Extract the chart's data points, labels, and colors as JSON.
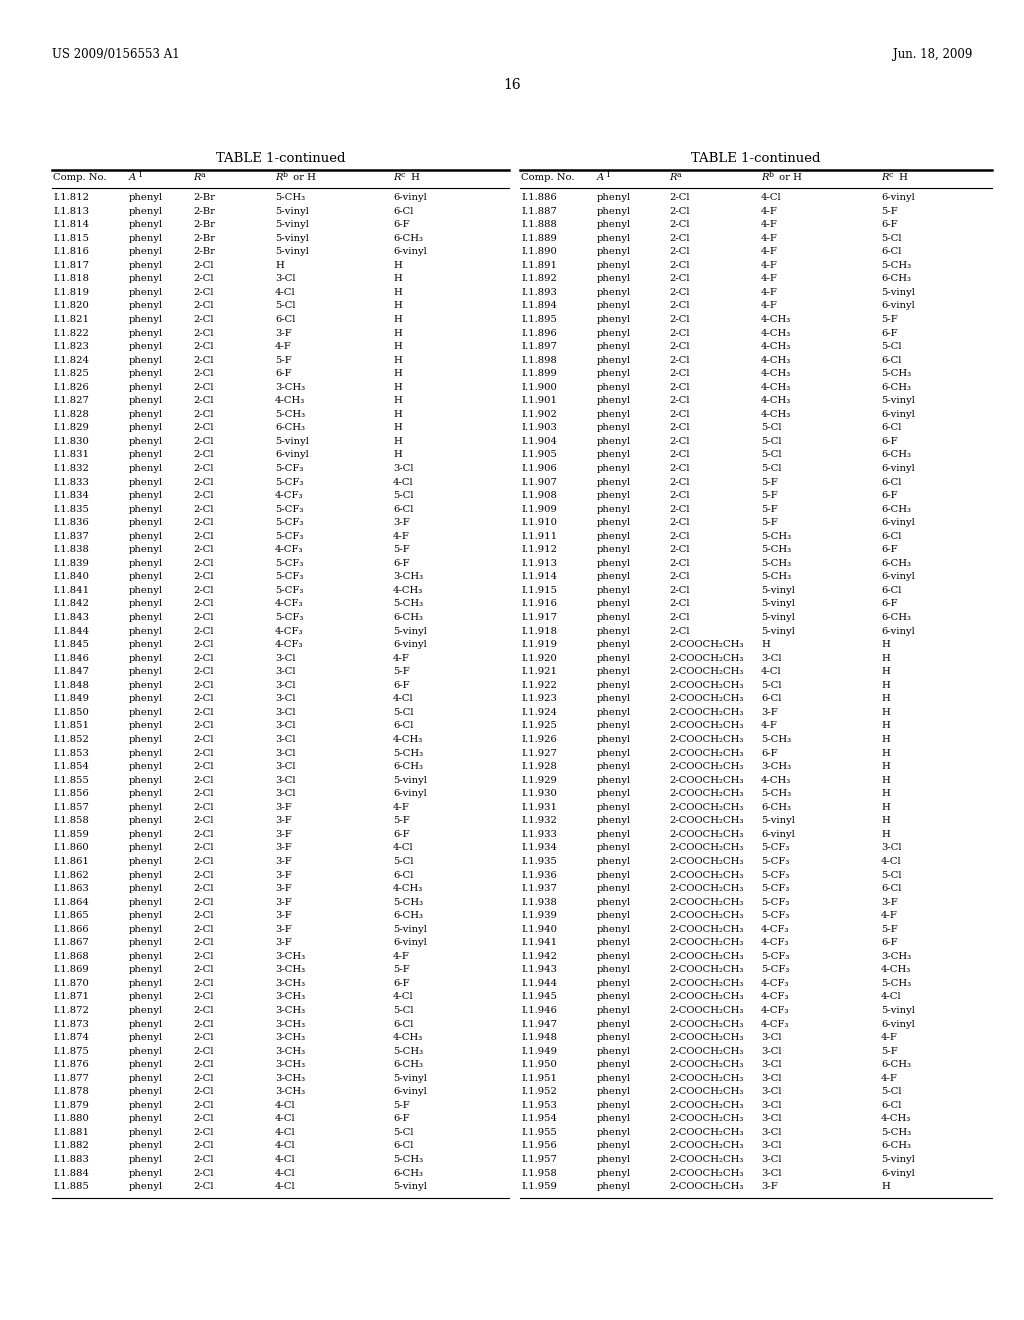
{
  "header_left": "US 2009/0156553 A1",
  "header_right": "Jun. 18, 2009",
  "page_number": "16",
  "table_title": "TABLE 1-continued",
  "background_color": "#ffffff",
  "text_color": "#000000",
  "font_size": 7.2,
  "title_font_size": 9.5,
  "left_table": [
    [
      "I.1.812",
      "phenyl",
      "2-Br",
      "5-CH₃",
      "6-vinyl"
    ],
    [
      "I.1.813",
      "phenyl",
      "2-Br",
      "5-vinyl",
      "6-Cl"
    ],
    [
      "I.1.814",
      "phenyl",
      "2-Br",
      "5-vinyl",
      "6-F"
    ],
    [
      "I.1.815",
      "phenyl",
      "2-Br",
      "5-vinyl",
      "6-CH₃"
    ],
    [
      "I.1.816",
      "phenyl",
      "2-Br",
      "5-vinyl",
      "6-vinyl"
    ],
    [
      "I.1.817",
      "phenyl",
      "2-Cl",
      "H",
      "H"
    ],
    [
      "I.1.818",
      "phenyl",
      "2-Cl",
      "3-Cl",
      "H"
    ],
    [
      "I.1.819",
      "phenyl",
      "2-Cl",
      "4-Cl",
      "H"
    ],
    [
      "I.1.820",
      "phenyl",
      "2-Cl",
      "5-Cl",
      "H"
    ],
    [
      "I.1.821",
      "phenyl",
      "2-Cl",
      "6-Cl",
      "H"
    ],
    [
      "I.1.822",
      "phenyl",
      "2-Cl",
      "3-F",
      "H"
    ],
    [
      "I.1.823",
      "phenyl",
      "2-Cl",
      "4-F",
      "H"
    ],
    [
      "I.1.824",
      "phenyl",
      "2-Cl",
      "5-F",
      "H"
    ],
    [
      "I.1.825",
      "phenyl",
      "2-Cl",
      "6-F",
      "H"
    ],
    [
      "I.1.826",
      "phenyl",
      "2-Cl",
      "3-CH₃",
      "H"
    ],
    [
      "I.1.827",
      "phenyl",
      "2-Cl",
      "4-CH₃",
      "H"
    ],
    [
      "I.1.828",
      "phenyl",
      "2-Cl",
      "5-CH₃",
      "H"
    ],
    [
      "I.1.829",
      "phenyl",
      "2-Cl",
      "6-CH₃",
      "H"
    ],
    [
      "I.1.830",
      "phenyl",
      "2-Cl",
      "5-vinyl",
      "H"
    ],
    [
      "I.1.831",
      "phenyl",
      "2-Cl",
      "6-vinyl",
      "H"
    ],
    [
      "I.1.832",
      "phenyl",
      "2-Cl",
      "5-CF₃",
      "3-Cl"
    ],
    [
      "I.1.833",
      "phenyl",
      "2-Cl",
      "5-CF₃",
      "4-Cl"
    ],
    [
      "I.1.834",
      "phenyl",
      "2-Cl",
      "4-CF₃",
      "5-Cl"
    ],
    [
      "I.1.835",
      "phenyl",
      "2-Cl",
      "5-CF₃",
      "6-Cl"
    ],
    [
      "I.1.836",
      "phenyl",
      "2-Cl",
      "5-CF₃",
      "3-F"
    ],
    [
      "I.1.837",
      "phenyl",
      "2-Cl",
      "5-CF₃",
      "4-F"
    ],
    [
      "I.1.838",
      "phenyl",
      "2-Cl",
      "4-CF₃",
      "5-F"
    ],
    [
      "I.1.839",
      "phenyl",
      "2-Cl",
      "5-CF₃",
      "6-F"
    ],
    [
      "I.1.840",
      "phenyl",
      "2-Cl",
      "5-CF₃",
      "3-CH₃"
    ],
    [
      "I.1.841",
      "phenyl",
      "2-Cl",
      "5-CF₃",
      "4-CH₃"
    ],
    [
      "I.1.842",
      "phenyl",
      "2-Cl",
      "4-CF₃",
      "5-CH₃"
    ],
    [
      "I.1.843",
      "phenyl",
      "2-Cl",
      "5-CF₃",
      "6-CH₃"
    ],
    [
      "I.1.844",
      "phenyl",
      "2-Cl",
      "4-CF₃",
      "5-vinyl"
    ],
    [
      "I.1.845",
      "phenyl",
      "2-Cl",
      "4-CF₃",
      "6-vinyl"
    ],
    [
      "I.1.846",
      "phenyl",
      "2-Cl",
      "3-Cl",
      "4-F"
    ],
    [
      "I.1.847",
      "phenyl",
      "2-Cl",
      "3-Cl",
      "5-F"
    ],
    [
      "I.1.848",
      "phenyl",
      "2-Cl",
      "3-Cl",
      "6-F"
    ],
    [
      "I.1.849",
      "phenyl",
      "2-Cl",
      "3-Cl",
      "4-Cl"
    ],
    [
      "I.1.850",
      "phenyl",
      "2-Cl",
      "3-Cl",
      "5-Cl"
    ],
    [
      "I.1.851",
      "phenyl",
      "2-Cl",
      "3-Cl",
      "6-Cl"
    ],
    [
      "I.1.852",
      "phenyl",
      "2-Cl",
      "3-Cl",
      "4-CH₃"
    ],
    [
      "I.1.853",
      "phenyl",
      "2-Cl",
      "3-Cl",
      "5-CH₃"
    ],
    [
      "I.1.854",
      "phenyl",
      "2-Cl",
      "3-Cl",
      "6-CH₃"
    ],
    [
      "I.1.855",
      "phenyl",
      "2-Cl",
      "3-Cl",
      "5-vinyl"
    ],
    [
      "I.1.856",
      "phenyl",
      "2-Cl",
      "3-Cl",
      "6-vinyl"
    ],
    [
      "I.1.857",
      "phenyl",
      "2-Cl",
      "3-F",
      "4-F"
    ],
    [
      "I.1.858",
      "phenyl",
      "2-Cl",
      "3-F",
      "5-F"
    ],
    [
      "I.1.859",
      "phenyl",
      "2-Cl",
      "3-F",
      "6-F"
    ],
    [
      "I.1.860",
      "phenyl",
      "2-Cl",
      "3-F",
      "4-Cl"
    ],
    [
      "I.1.861",
      "phenyl",
      "2-Cl",
      "3-F",
      "5-Cl"
    ],
    [
      "I.1.862",
      "phenyl",
      "2-Cl",
      "3-F",
      "6-Cl"
    ],
    [
      "I.1.863",
      "phenyl",
      "2-Cl",
      "3-F",
      "4-CH₃"
    ],
    [
      "I.1.864",
      "phenyl",
      "2-Cl",
      "3-F",
      "5-CH₃"
    ],
    [
      "I.1.865",
      "phenyl",
      "2-Cl",
      "3-F",
      "6-CH₃"
    ],
    [
      "I.1.866",
      "phenyl",
      "2-Cl",
      "3-F",
      "5-vinyl"
    ],
    [
      "I.1.867",
      "phenyl",
      "2-Cl",
      "3-F",
      "6-vinyl"
    ],
    [
      "I.1.868",
      "phenyl",
      "2-Cl",
      "3-CH₃",
      "4-F"
    ],
    [
      "I.1.869",
      "phenyl",
      "2-Cl",
      "3-CH₃",
      "5-F"
    ],
    [
      "I.1.870",
      "phenyl",
      "2-Cl",
      "3-CH₃",
      "6-F"
    ],
    [
      "I.1.871",
      "phenyl",
      "2-Cl",
      "3-CH₃",
      "4-Cl"
    ],
    [
      "I.1.872",
      "phenyl",
      "2-Cl",
      "3-CH₃",
      "5-Cl"
    ],
    [
      "I.1.873",
      "phenyl",
      "2-Cl",
      "3-CH₃",
      "6-Cl"
    ],
    [
      "I.1.874",
      "phenyl",
      "2-Cl",
      "3-CH₃",
      "4-CH₃"
    ],
    [
      "I.1.875",
      "phenyl",
      "2-Cl",
      "3-CH₃",
      "5-CH₃"
    ],
    [
      "I.1.876",
      "phenyl",
      "2-Cl",
      "3-CH₃",
      "6-CH₃"
    ],
    [
      "I.1.877",
      "phenyl",
      "2-Cl",
      "3-CH₃",
      "5-vinyl"
    ],
    [
      "I.1.878",
      "phenyl",
      "2-Cl",
      "3-CH₃",
      "6-vinyl"
    ],
    [
      "I.1.879",
      "phenyl",
      "2-Cl",
      "4-Cl",
      "5-F"
    ],
    [
      "I.1.880",
      "phenyl",
      "2-Cl",
      "4-Cl",
      "6-F"
    ],
    [
      "I.1.881",
      "phenyl",
      "2-Cl",
      "4-Cl",
      "5-Cl"
    ],
    [
      "I.1.882",
      "phenyl",
      "2-Cl",
      "4-Cl",
      "6-Cl"
    ],
    [
      "I.1.883",
      "phenyl",
      "2-Cl",
      "4-Cl",
      "5-CH₃"
    ],
    [
      "I.1.884",
      "phenyl",
      "2-Cl",
      "4-Cl",
      "6-CH₃"
    ],
    [
      "I.1.885",
      "phenyl",
      "2-Cl",
      "4-Cl",
      "5-vinyl"
    ]
  ],
  "right_table": [
    [
      "I.1.886",
      "phenyl",
      "2-Cl",
      "4-Cl",
      "6-vinyl"
    ],
    [
      "I.1.887",
      "phenyl",
      "2-Cl",
      "4-F",
      "5-F"
    ],
    [
      "I.1.888",
      "phenyl",
      "2-Cl",
      "4-F",
      "6-F"
    ],
    [
      "I.1.889",
      "phenyl",
      "2-Cl",
      "4-F",
      "5-Cl"
    ],
    [
      "I.1.890",
      "phenyl",
      "2-Cl",
      "4-F",
      "6-Cl"
    ],
    [
      "I.1.891",
      "phenyl",
      "2-Cl",
      "4-F",
      "5-CH₃"
    ],
    [
      "I.1.892",
      "phenyl",
      "2-Cl",
      "4-F",
      "6-CH₃"
    ],
    [
      "I.1.893",
      "phenyl",
      "2-Cl",
      "4-F",
      "5-vinyl"
    ],
    [
      "I.1.894",
      "phenyl",
      "2-Cl",
      "4-F",
      "6-vinyl"
    ],
    [
      "I.1.895",
      "phenyl",
      "2-Cl",
      "4-CH₃",
      "5-F"
    ],
    [
      "I.1.896",
      "phenyl",
      "2-Cl",
      "4-CH₃",
      "6-F"
    ],
    [
      "I.1.897",
      "phenyl",
      "2-Cl",
      "4-CH₃",
      "5-Cl"
    ],
    [
      "I.1.898",
      "phenyl",
      "2-Cl",
      "4-CH₃",
      "6-Cl"
    ],
    [
      "I.1.899",
      "phenyl",
      "2-Cl",
      "4-CH₃",
      "5-CH₃"
    ],
    [
      "I.1.900",
      "phenyl",
      "2-Cl",
      "4-CH₃",
      "6-CH₃"
    ],
    [
      "I.1.901",
      "phenyl",
      "2-Cl",
      "4-CH₃",
      "5-vinyl"
    ],
    [
      "I.1.902",
      "phenyl",
      "2-Cl",
      "4-CH₃",
      "6-vinyl"
    ],
    [
      "I.1.903",
      "phenyl",
      "2-Cl",
      "5-Cl",
      "6-Cl"
    ],
    [
      "I.1.904",
      "phenyl",
      "2-Cl",
      "5-Cl",
      "6-F"
    ],
    [
      "I.1.905",
      "phenyl",
      "2-Cl",
      "5-Cl",
      "6-CH₃"
    ],
    [
      "I.1.906",
      "phenyl",
      "2-Cl",
      "5-Cl",
      "6-vinyl"
    ],
    [
      "I.1.907",
      "phenyl",
      "2-Cl",
      "5-F",
      "6-Cl"
    ],
    [
      "I.1.908",
      "phenyl",
      "2-Cl",
      "5-F",
      "6-F"
    ],
    [
      "I.1.909",
      "phenyl",
      "2-Cl",
      "5-F",
      "6-CH₃"
    ],
    [
      "I.1.910",
      "phenyl",
      "2-Cl",
      "5-F",
      "6-vinyl"
    ],
    [
      "I.1.911",
      "phenyl",
      "2-Cl",
      "5-CH₃",
      "6-Cl"
    ],
    [
      "I.1.912",
      "phenyl",
      "2-Cl",
      "5-CH₃",
      "6-F"
    ],
    [
      "I.1.913",
      "phenyl",
      "2-Cl",
      "5-CH₃",
      "6-CH₃"
    ],
    [
      "I.1.914",
      "phenyl",
      "2-Cl",
      "5-CH₃",
      "6-vinyl"
    ],
    [
      "I.1.915",
      "phenyl",
      "2-Cl",
      "5-vinyl",
      "6-Cl"
    ],
    [
      "I.1.916",
      "phenyl",
      "2-Cl",
      "5-vinyl",
      "6-F"
    ],
    [
      "I.1.917",
      "phenyl",
      "2-Cl",
      "5-vinyl",
      "6-CH₃"
    ],
    [
      "I.1.918",
      "phenyl",
      "2-Cl",
      "5-vinyl",
      "6-vinyl"
    ],
    [
      "I.1.919",
      "phenyl",
      "2-COOCH₂CH₃",
      "H",
      "H"
    ],
    [
      "I.1.920",
      "phenyl",
      "2-COOCH₂CH₃",
      "3-Cl",
      "H"
    ],
    [
      "I.1.921",
      "phenyl",
      "2-COOCH₂CH₃",
      "4-Cl",
      "H"
    ],
    [
      "I.1.922",
      "phenyl",
      "2-COOCH₂CH₃",
      "5-Cl",
      "H"
    ],
    [
      "I.1.923",
      "phenyl",
      "2-COOCH₂CH₃",
      "6-Cl",
      "H"
    ],
    [
      "I.1.924",
      "phenyl",
      "2-COOCH₂CH₃",
      "3-F",
      "H"
    ],
    [
      "I.1.925",
      "phenyl",
      "2-COOCH₂CH₃",
      "4-F",
      "H"
    ],
    [
      "I.1.926",
      "phenyl",
      "2-COOCH₂CH₃",
      "5-CH₃",
      "H"
    ],
    [
      "I.1.927",
      "phenyl",
      "2-COOCH₂CH₃",
      "6-F",
      "H"
    ],
    [
      "I.1.928",
      "phenyl",
      "2-COOCH₂CH₃",
      "3-CH₃",
      "H"
    ],
    [
      "I.1.929",
      "phenyl",
      "2-COOCH₂CH₃",
      "4-CH₃",
      "H"
    ],
    [
      "I.1.930",
      "phenyl",
      "2-COOCH₂CH₃",
      "5-CH₃",
      "H"
    ],
    [
      "I.1.931",
      "phenyl",
      "2-COOCH₂CH₃",
      "6-CH₃",
      "H"
    ],
    [
      "I.1.932",
      "phenyl",
      "2-COOCH₂CH₃",
      "5-vinyl",
      "H"
    ],
    [
      "I.1.933",
      "phenyl",
      "2-COOCH₂CH₃",
      "6-vinyl",
      "H"
    ],
    [
      "I.1.934",
      "phenyl",
      "2-COOCH₂CH₃",
      "5-CF₃",
      "3-Cl"
    ],
    [
      "I.1.935",
      "phenyl",
      "2-COOCH₂CH₃",
      "5-CF₃",
      "4-Cl"
    ],
    [
      "I.1.936",
      "phenyl",
      "2-COOCH₂CH₃",
      "5-CF₃",
      "5-Cl"
    ],
    [
      "I.1.937",
      "phenyl",
      "2-COOCH₂CH₃",
      "5-CF₃",
      "6-Cl"
    ],
    [
      "I.1.938",
      "phenyl",
      "2-COOCH₂CH₃",
      "5-CF₃",
      "3-F"
    ],
    [
      "I.1.939",
      "phenyl",
      "2-COOCH₂CH₃",
      "5-CF₃",
      "4-F"
    ],
    [
      "I.1.940",
      "phenyl",
      "2-COOCH₂CH₃",
      "4-CF₃",
      "5-F"
    ],
    [
      "I.1.941",
      "phenyl",
      "2-COOCH₂CH₃",
      "4-CF₃",
      "6-F"
    ],
    [
      "I.1.942",
      "phenyl",
      "2-COOCH₂CH₃",
      "5-CF₃",
      "3-CH₃"
    ],
    [
      "I.1.943",
      "phenyl",
      "2-COOCH₂CH₃",
      "5-CF₃",
      "4-CH₃"
    ],
    [
      "I.1.944",
      "phenyl",
      "2-COOCH₂CH₃",
      "4-CF₃",
      "5-CH₃"
    ],
    [
      "I.1.945",
      "phenyl",
      "2-COOCH₂CH₃",
      "4-CF₃",
      "4-Cl"
    ],
    [
      "I.1.946",
      "phenyl",
      "2-COOCH₂CH₃",
      "4-CF₃",
      "5-vinyl"
    ],
    [
      "I.1.947",
      "phenyl",
      "2-COOCH₂CH₃",
      "4-CF₃",
      "6-vinyl"
    ],
    [
      "I.1.948",
      "phenyl",
      "2-COOCH₂CH₃",
      "3-Cl",
      "4-F"
    ],
    [
      "I.1.949",
      "phenyl",
      "2-COOCH₂CH₃",
      "3-Cl",
      "5-F"
    ],
    [
      "I.1.950",
      "phenyl",
      "2-COOCH₂CH₃",
      "3-Cl",
      "6-CH₃"
    ],
    [
      "I.1.951",
      "phenyl",
      "2-COOCH₂CH₃",
      "3-Cl",
      "4-F"
    ],
    [
      "I.1.952",
      "phenyl",
      "2-COOCH₂CH₃",
      "3-Cl",
      "5-Cl"
    ],
    [
      "I.1.953",
      "phenyl",
      "2-COOCH₂CH₃",
      "3-Cl",
      "6-Cl"
    ],
    [
      "I.1.954",
      "phenyl",
      "2-COOCH₂CH₃",
      "3-Cl",
      "4-CH₃"
    ],
    [
      "I.1.955",
      "phenyl",
      "2-COOCH₂CH₃",
      "3-Cl",
      "5-CH₃"
    ],
    [
      "I.1.956",
      "phenyl",
      "2-COOCH₂CH₃",
      "3-Cl",
      "6-CH₃"
    ],
    [
      "I.1.957",
      "phenyl",
      "2-COOCH₂CH₃",
      "3-Cl",
      "5-vinyl"
    ],
    [
      "I.1.958",
      "phenyl",
      "2-COOCH₂CH₃",
      "3-Cl",
      "6-vinyl"
    ],
    [
      "I.1.959",
      "phenyl",
      "2-COOCH₂CH₃",
      "3-F",
      "H"
    ]
  ]
}
